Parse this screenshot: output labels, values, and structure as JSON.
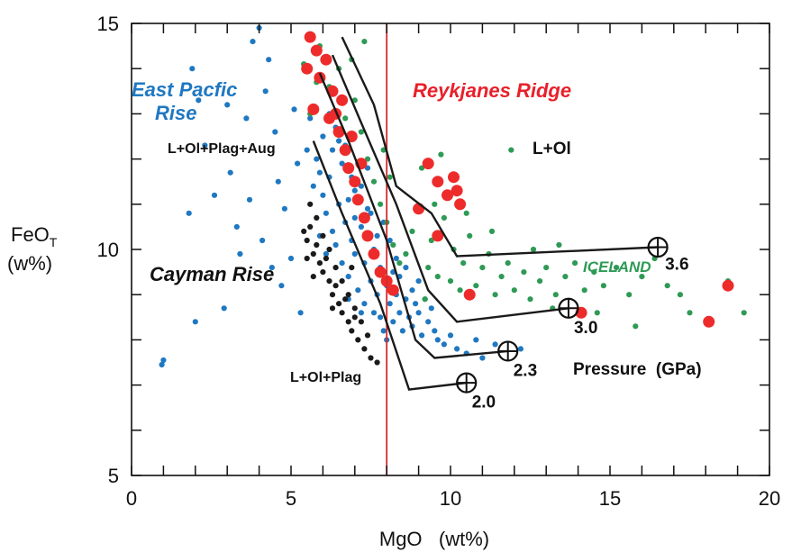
{
  "chart_data": {
    "type": "scatter",
    "x_axis": {
      "label": "MgO   (wt%)",
      "range": [
        0,
        20
      ],
      "ticks": [
        0,
        5,
        10,
        15,
        20
      ]
    },
    "y_axis": {
      "label_main": "FeO",
      "label_sub": "T",
      "label_unit": "(w%)",
      "range": [
        5,
        15
      ],
      "ticks": [
        5,
        10,
        15
      ]
    },
    "grid": false,
    "reference_line": {
      "x": 8,
      "color": "#d42a2a"
    },
    "colors": {
      "epr": "#1f78c1",
      "cayman": "#1a1a1a",
      "iceland": "#2e9a55",
      "reykjanes": "#ee2b2b",
      "trend": "#1a1a1a",
      "reykjanes_label": "#e8202a",
      "iceland_label": "#2e9a55",
      "epr_label": "#1f78c1"
    },
    "annotations": {
      "east_pacific_rise_1": "East Pacfic",
      "east_pacific_rise_2": "Rise",
      "reykjanes_ridge": "Reykjanes Ridge",
      "iceland": "ICELAND",
      "cayman_rise": "Cayman Rise",
      "l_ol": "L+Ol",
      "l_ol_plag_aug": "L+Ol+Plag+Aug",
      "l_ol_plag": "L+Ol+Plag",
      "pressure": "Pressure  (GPa)"
    },
    "trend_lines": [
      {
        "pressure": "2.0",
        "points": [
          [
            5.7,
            12.4
          ],
          [
            6.6,
            10.8
          ],
          [
            7.8,
            8.8
          ],
          [
            8.7,
            6.9
          ],
          [
            10.5,
            7.05
          ]
        ]
      },
      {
        "pressure": "2.3",
        "points": [
          [
            5.9,
            13.9
          ],
          [
            6.8,
            12.4
          ],
          [
            8.0,
            10.2
          ],
          [
            8.9,
            8.0
          ],
          [
            9.5,
            7.6
          ],
          [
            11.8,
            7.75
          ]
        ]
      },
      {
        "pressure": "3.0",
        "points": [
          [
            6.3,
            14.3
          ],
          [
            7.2,
            12.8
          ],
          [
            8.3,
            11.0
          ],
          [
            9.3,
            9.1
          ],
          [
            10.2,
            8.4
          ],
          [
            13.7,
            8.7
          ]
        ]
      },
      {
        "pressure": "3.6",
        "points": [
          [
            6.6,
            14.7
          ],
          [
            7.6,
            13.2
          ],
          [
            8.3,
            11.4
          ],
          [
            9.4,
            10.8
          ],
          [
            10.2,
            9.85
          ],
          [
            16.5,
            10.05
          ]
        ]
      }
    ],
    "pressure_markers": [
      {
        "label": "2.0",
        "x": 10.5,
        "y": 7.05
      },
      {
        "label": "2.3",
        "x": 11.8,
        "y": 7.75
      },
      {
        "label": "3.0",
        "x": 13.7,
        "y": 8.7
      },
      {
        "label": "3.6",
        "x": 16.5,
        "y": 10.05
      }
    ],
    "series": [
      {
        "name": "East Pacfic Rise",
        "color": "#1f78c1",
        "points": [
          [
            0.95,
            7.45
          ],
          [
            1.0,
            7.55
          ],
          [
            1.9,
            14.0
          ],
          [
            2.0,
            8.4
          ],
          [
            2.1,
            13.3
          ],
          [
            1.8,
            10.8
          ],
          [
            2.3,
            12.3
          ],
          [
            2.6,
            11.2
          ],
          [
            2.9,
            8.7
          ],
          [
            3.0,
            13.2
          ],
          [
            3.1,
            11.7
          ],
          [
            3.3,
            10.5
          ],
          [
            3.4,
            9.9
          ],
          [
            3.6,
            12.9
          ],
          [
            3.7,
            11.1
          ],
          [
            3.8,
            14.6
          ],
          [
            4.0,
            14.9
          ],
          [
            4.1,
            10.2
          ],
          [
            4.2,
            13.5
          ],
          [
            4.4,
            9.6
          ],
          [
            4.5,
            12.6
          ],
          [
            4.3,
            14.2
          ],
          [
            4.6,
            11.5
          ],
          [
            4.8,
            10.9
          ],
          [
            5.1,
            13.1
          ],
          [
            5.0,
            9.8
          ],
          [
            5.2,
            11.9
          ],
          [
            5.4,
            14.1
          ],
          [
            5.5,
            12.2
          ],
          [
            5.6,
            12.9
          ],
          [
            5.7,
            11.4
          ],
          [
            5.8,
            12.0
          ],
          [
            5.9,
            11.7
          ],
          [
            6.0,
            11.2
          ],
          [
            6.0,
            12.5
          ],
          [
            6.1,
            10.8
          ],
          [
            6.2,
            11.6
          ],
          [
            6.3,
            10.4
          ],
          [
            6.3,
            12.2
          ],
          [
            6.4,
            10.1
          ],
          [
            6.5,
            11.0
          ],
          [
            6.6,
            9.7
          ],
          [
            6.6,
            11.9
          ],
          [
            6.7,
            10.6
          ],
          [
            6.8,
            9.4
          ],
          [
            6.9,
            10.2
          ],
          [
            7.0,
            9.9
          ],
          [
            7.0,
            11.3
          ],
          [
            7.1,
            9.1
          ],
          [
            7.2,
            10.5
          ],
          [
            7.3,
            8.8
          ],
          [
            7.3,
            9.7
          ],
          [
            7.4,
            10.9
          ],
          [
            7.5,
            9.3
          ],
          [
            7.6,
            8.6
          ],
          [
            7.6,
            10.0
          ],
          [
            7.7,
            9.0
          ],
          [
            7.8,
            8.5
          ],
          [
            7.8,
            9.6
          ],
          [
            7.9,
            8.2
          ],
          [
            8.0,
            9.2
          ],
          [
            8.0,
            8.0
          ],
          [
            8.1,
            8.8
          ],
          [
            8.2,
            9.5
          ],
          [
            8.2,
            8.4
          ],
          [
            8.3,
            9.0
          ],
          [
            8.4,
            8.6
          ],
          [
            8.4,
            9.4
          ],
          [
            8.5,
            8.2
          ],
          [
            8.6,
            8.9
          ],
          [
            8.6,
            9.6
          ],
          [
            8.7,
            8.5
          ],
          [
            8.8,
            9.1
          ],
          [
            8.8,
            8.3
          ],
          [
            8.9,
            8.8
          ],
          [
            9.0,
            8.6
          ],
          [
            9.0,
            9.3
          ],
          [
            9.1,
            8.1
          ],
          [
            9.2,
            8.9
          ],
          [
            9.3,
            8.4
          ],
          [
            9.4,
            8.7
          ],
          [
            9.5,
            8.2
          ],
          [
            9.6,
            8.0
          ],
          [
            9.8,
            7.9
          ],
          [
            10.0,
            8.1
          ],
          [
            10.2,
            7.8
          ],
          [
            10.5,
            7.7
          ],
          [
            10.8,
            8.0
          ],
          [
            11.0,
            7.6
          ],
          [
            11.4,
            7.9
          ],
          [
            12.2,
            7.8
          ],
          [
            6.7,
            12.3
          ],
          [
            6.9,
            11.6
          ],
          [
            7.1,
            11.9
          ],
          [
            7.2,
            11.4
          ],
          [
            7.4,
            11.8
          ],
          [
            7.5,
            10.8
          ],
          [
            7.7,
            10.3
          ],
          [
            7.9,
            10.6
          ],
          [
            8.1,
            10.2
          ],
          [
            8.3,
            9.8
          ],
          [
            6.4,
            12.7
          ],
          [
            6.2,
            13.0
          ],
          [
            6.5,
            12.4
          ],
          [
            6.8,
            11.1
          ],
          [
            7.0,
            10.7
          ],
          [
            5.9,
            10.3
          ],
          [
            6.1,
            9.9
          ],
          [
            6.8,
            8.9
          ],
          [
            7.2,
            8.6
          ],
          [
            4.7,
            9.2
          ],
          [
            5.3,
            8.6
          ]
        ]
      },
      {
        "name": "Cayman Rise",
        "color": "#1a1a1a",
        "points": [
          [
            5.4,
            10.4
          ],
          [
            5.5,
            10.2
          ],
          [
            5.6,
            10.5
          ],
          [
            5.7,
            9.9
          ],
          [
            5.8,
            10.1
          ],
          [
            5.9,
            9.7
          ],
          [
            6.0,
            9.5
          ],
          [
            6.1,
            9.8
          ],
          [
            6.2,
            9.3
          ],
          [
            6.3,
            9.0
          ],
          [
            6.4,
            9.2
          ],
          [
            6.5,
            8.8
          ],
          [
            6.6,
            8.6
          ],
          [
            6.7,
            8.9
          ],
          [
            6.8,
            8.4
          ],
          [
            6.9,
            8.2
          ],
          [
            7.0,
            8.5
          ],
          [
            7.1,
            8.0
          ],
          [
            7.3,
            7.8
          ],
          [
            7.5,
            7.6
          ],
          [
            7.7,
            7.5
          ],
          [
            5.6,
            11.0
          ],
          [
            5.8,
            10.7
          ],
          [
            6.0,
            10.3
          ],
          [
            6.2,
            10.0
          ],
          [
            6.4,
            9.6
          ],
          [
            6.6,
            9.3
          ],
          [
            6.8,
            9.0
          ],
          [
            7.0,
            8.7
          ],
          [
            7.2,
            8.4
          ],
          [
            7.4,
            8.1
          ],
          [
            5.5,
            9.8
          ],
          [
            5.7,
            9.4
          ],
          [
            6.3,
            8.7
          ],
          [
            6.9,
            9.6
          ]
        ]
      },
      {
        "name": "ICELAND",
        "color": "#2e9a55",
        "points": [
          [
            5.4,
            14.1
          ],
          [
            5.6,
            13.0
          ],
          [
            5.9,
            14.5
          ],
          [
            6.2,
            13.6
          ],
          [
            6.5,
            14.0
          ],
          [
            6.7,
            12.9
          ],
          [
            7.0,
            13.3
          ],
          [
            7.2,
            12.6
          ],
          [
            7.4,
            12.0
          ],
          [
            7.6,
            11.5
          ],
          [
            7.8,
            11.0
          ],
          [
            8.0,
            10.6
          ],
          [
            8.2,
            10.1
          ],
          [
            8.4,
            9.7
          ],
          [
            8.6,
            9.9
          ],
          [
            8.8,
            10.4
          ],
          [
            9.0,
            10.9
          ],
          [
            9.1,
            11.8
          ],
          [
            9.3,
            9.6
          ],
          [
            9.4,
            10.2
          ],
          [
            9.5,
            11.0
          ],
          [
            9.6,
            9.4
          ],
          [
            9.7,
            12.1
          ],
          [
            9.8,
            10.7
          ],
          [
            10.0,
            9.3
          ],
          [
            10.1,
            10.0
          ],
          [
            10.3,
            9.1
          ],
          [
            10.4,
            9.7
          ],
          [
            10.6,
            10.3
          ],
          [
            10.8,
            9.2
          ],
          [
            11.0,
            9.6
          ],
          [
            11.2,
            9.9
          ],
          [
            11.4,
            9.0
          ],
          [
            11.6,
            9.4
          ],
          [
            11.8,
            9.7
          ],
          [
            11.9,
            12.2
          ],
          [
            12.0,
            9.1
          ],
          [
            12.3,
            9.5
          ],
          [
            12.5,
            8.9
          ],
          [
            12.8,
            9.3
          ],
          [
            13.0,
            9.6
          ],
          [
            13.3,
            9.0
          ],
          [
            13.6,
            9.4
          ],
          [
            13.9,
            9.7
          ],
          [
            14.2,
            9.1
          ],
          [
            14.5,
            9.5
          ],
          [
            14.8,
            9.2
          ],
          [
            15.2,
            9.6
          ],
          [
            15.6,
            9.0
          ],
          [
            16.0,
            9.4
          ],
          [
            16.4,
            9.8
          ],
          [
            16.8,
            9.2
          ],
          [
            17.2,
            9.0
          ],
          [
            17.5,
            8.6
          ],
          [
            15.8,
            8.3
          ],
          [
            14.6,
            8.6
          ],
          [
            13.2,
            8.7
          ],
          [
            18.7,
            9.3
          ],
          [
            19.2,
            8.6
          ],
          [
            10.5,
            10.8
          ],
          [
            11.3,
            10.4
          ],
          [
            12.6,
            10.0
          ],
          [
            13.4,
            10.1
          ],
          [
            9.2,
            8.9
          ],
          [
            7.9,
            12.2
          ],
          [
            8.1,
            11.6
          ],
          [
            6.9,
            14.2
          ],
          [
            7.3,
            14.6
          ],
          [
            5.8,
            13.7
          ]
        ]
      },
      {
        "name": "Reykjanes Ridge",
        "color": "#ee2b2b",
        "points": [
          [
            5.6,
            14.7
          ],
          [
            5.8,
            14.4
          ],
          [
            5.5,
            14.0
          ],
          [
            5.9,
            13.8
          ],
          [
            6.1,
            14.2
          ],
          [
            6.3,
            13.5
          ],
          [
            6.4,
            13.0
          ],
          [
            6.5,
            12.6
          ],
          [
            6.7,
            12.2
          ],
          [
            6.8,
            11.8
          ],
          [
            7.0,
            11.5
          ],
          [
            7.1,
            11.1
          ],
          [
            7.3,
            10.7
          ],
          [
            7.4,
            10.3
          ],
          [
            7.6,
            9.9
          ],
          [
            7.8,
            9.5
          ],
          [
            8.0,
            9.3
          ],
          [
            8.2,
            9.1
          ],
          [
            6.6,
            13.3
          ],
          [
            6.9,
            12.5
          ],
          [
            7.2,
            11.9
          ],
          [
            9.3,
            11.9
          ],
          [
            9.6,
            11.5
          ],
          [
            9.9,
            11.2
          ],
          [
            10.1,
            11.6
          ],
          [
            10.2,
            11.3
          ],
          [
            10.3,
            11.0
          ],
          [
            9.0,
            10.9
          ],
          [
            9.6,
            10.3
          ],
          [
            10.6,
            9.0
          ],
          [
            14.1,
            8.6
          ],
          [
            18.1,
            8.4
          ],
          [
            18.7,
            9.2
          ],
          [
            5.7,
            13.1
          ],
          [
            6.2,
            12.9
          ]
        ]
      }
    ]
  }
}
